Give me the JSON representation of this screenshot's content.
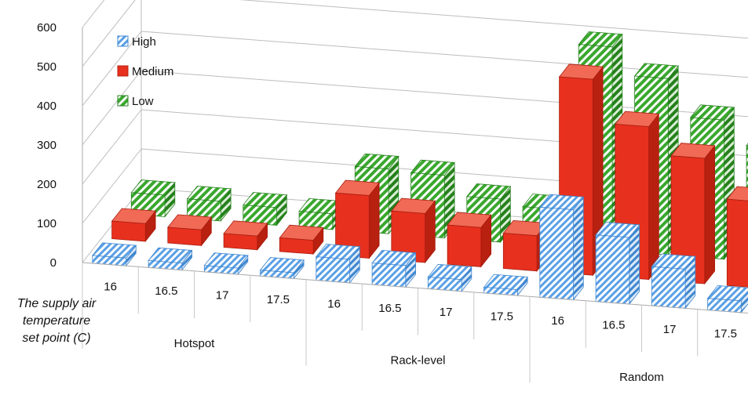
{
  "chart_data": {
    "type": "bar",
    "subtype": "3d-clustered-column",
    "title": "",
    "xlabel": "The supply air temperature set point (C)",
    "xlabel_lines": [
      "The supply air",
      "temperature",
      "set point (C)"
    ],
    "ylabel": "",
    "ylim": [
      0,
      600
    ],
    "yticks": [
      "0",
      "100",
      "200",
      "300",
      "400",
      "500",
      "600"
    ],
    "grid": true,
    "legend_position": "top-left",
    "groups": [
      {
        "name": "Hotspot",
        "categories": [
          "16",
          "16.5",
          "17",
          "17.5"
        ]
      },
      {
        "name": "Rack-level",
        "categories": [
          "16",
          "16.5",
          "17",
          "17.5"
        ]
      },
      {
        "name": "Random",
        "categories": [
          "16",
          "16.5",
          "17",
          "17.5"
        ]
      }
    ],
    "series": [
      {
        "name": "High",
        "values": [
          20,
          18,
          16,
          15,
          60,
          55,
          30,
          15,
          230,
          170,
          100,
          30
        ]
      },
      {
        "name": "Medium",
        "values": [
          45,
          40,
          35,
          35,
          160,
          125,
          100,
          90,
          500,
          390,
          320,
          220
        ]
      },
      {
        "name": "Low",
        "values": [
          55,
          50,
          45,
          40,
          165,
          160,
          110,
          95,
          520,
          450,
          355,
          295
        ]
      }
    ],
    "colors": {
      "High": "#5aa0e6",
      "Medium": "#e8301e",
      "Low": "#3aa82e"
    }
  }
}
